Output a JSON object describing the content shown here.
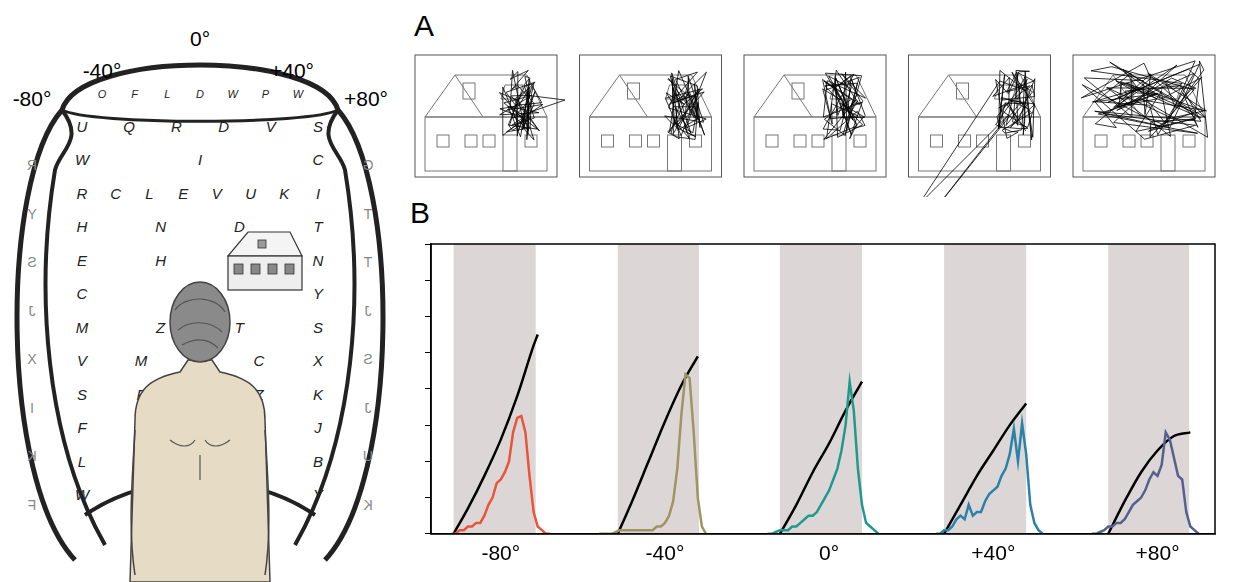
{
  "figure": {
    "angle_labels": [
      "-80°",
      "-40°",
      "0°",
      "+40°",
      "+80°"
    ],
    "dome_letters": [
      "O F L D W P W",
      "U Q R D V S",
      "W I C",
      "R C L E V U K I",
      "H N D T",
      "E H X N",
      "C Y",
      "M Z T S",
      "V M T C X",
      "S F M Z K",
      "F S M D J",
      "L M J G B",
      "W U G V Y"
    ],
    "left_side_letters": "RYSJXIKF",
    "right_side_letters": "GTTJSJUK"
  },
  "panel_a": {
    "label": "A",
    "panels": 5
  },
  "chart_data": {
    "type": "line",
    "panel_label": "B",
    "xlim": [
      -97,
      94
    ],
    "xticks": [
      {
        "value": -80,
        "label": "-80°"
      },
      {
        "value": -40,
        "label": "-40°"
      },
      {
        "value": 0,
        "label": "0°"
      },
      {
        "value": 40,
        "label": "+40°"
      },
      {
        "value": 80,
        "label": "+80°"
      }
    ],
    "ylim": [
      0,
      8
    ],
    "yticks": [
      0,
      1,
      2,
      3,
      4,
      5,
      6,
      7,
      8
    ],
    "tick_labels": "x",
    "grid": false,
    "bands": [
      [
        -91.5,
        -71.5
      ],
      [
        -51.5,
        -31.7
      ],
      [
        -12,
        8
      ],
      [
        28,
        48
      ],
      [
        68,
        87.7
      ]
    ],
    "series": [
      {
        "color": "#e8553a",
        "x": [
          -92,
          -91,
          -90,
          -89,
          -88,
          -87,
          -86,
          -85,
          -84,
          -83,
          -82,
          -81,
          -80,
          -79,
          -78,
          -77,
          -76,
          -75,
          -74,
          -73,
          -72,
          -71,
          -70,
          -69,
          -68
        ],
        "values": [
          0,
          0,
          0.1,
          0.1,
          0.2,
          0.2,
          0.3,
          0.3,
          0.5,
          0.8,
          1.0,
          1.4,
          1.5,
          1.7,
          2.0,
          2.8,
          3.2,
          3.25,
          2.8,
          1.6,
          0.6,
          0.2,
          0.1,
          0,
          0
        ]
      },
      {
        "color": "#a09460",
        "x": [
          -56,
          -55,
          -54,
          -53,
          -52,
          -51,
          -50,
          -49,
          -48,
          -47,
          -46,
          -45,
          -44,
          -43,
          -42,
          -41,
          -40,
          -39,
          -38,
          -37,
          -36,
          -35,
          -34,
          -33,
          -32,
          -31,
          -30
        ],
        "values": [
          0,
          0,
          0,
          0,
          0.05,
          0.1,
          0.1,
          0.1,
          0.1,
          0.1,
          0.1,
          0.1,
          0.1,
          0.1,
          0.2,
          0.2,
          0.3,
          0.5,
          0.9,
          1.8,
          3.3,
          4.4,
          4.3,
          2.8,
          1.0,
          0.2,
          0
        ]
      },
      {
        "color": "#1f9a8a",
        "x": [
          -15,
          -14,
          -13,
          -12,
          -11,
          -10,
          -9,
          -8,
          -7,
          -6,
          -5,
          -4,
          -3,
          -2,
          -1,
          0,
          1,
          2,
          3,
          4,
          5,
          6,
          7,
          8,
          9,
          10,
          11,
          12
        ],
        "values": [
          0,
          0,
          0.05,
          0.1,
          0.1,
          0.1,
          0.2,
          0.2,
          0.3,
          0.4,
          0.5,
          0.5,
          0.6,
          0.8,
          1.0,
          1.2,
          1.5,
          1.8,
          2.3,
          3.0,
          4.2,
          3.4,
          1.8,
          0.8,
          0.3,
          0.2,
          0.1,
          0
        ]
      },
      {
        "color": "#2a82a8",
        "x": [
          26,
          27,
          28,
          29,
          30,
          31,
          32,
          33,
          34,
          35,
          36,
          37,
          38,
          39,
          40,
          41,
          42,
          43,
          44,
          45,
          46,
          47,
          48,
          49,
          50,
          51,
          52
        ],
        "values": [
          0,
          0,
          0.1,
          0.1,
          0.2,
          0.4,
          0.5,
          0.4,
          0.8,
          0.5,
          0.6,
          0.6,
          0.9,
          1.1,
          1.2,
          1.3,
          1.6,
          1.8,
          2.2,
          2.9,
          2.0,
          3.05,
          2.2,
          0.8,
          0.3,
          0.1,
          0
        ]
      },
      {
        "color": "#55608f",
        "x": [
          64,
          65,
          66,
          67,
          68,
          69,
          70,
          71,
          72,
          73,
          74,
          75,
          76,
          77,
          78,
          79,
          80,
          81,
          82,
          83,
          84,
          85,
          86,
          87,
          88,
          89,
          90
        ],
        "values": [
          0,
          0,
          0.05,
          0.1,
          0.2,
          0.2,
          0.3,
          0.3,
          0.4,
          0.6,
          0.8,
          0.9,
          1.0,
          1.2,
          1.5,
          1.7,
          1.6,
          1.9,
          2.8,
          2.6,
          2.1,
          1.6,
          1.5,
          0.6,
          0.2,
          0.1,
          0
        ]
      }
    ],
    "fits": [
      {
        "color": "#000000",
        "x": [
          -91.5,
          -88,
          -84,
          -80,
          -76,
          -72,
          -71
        ],
        "values": [
          0,
          0.7,
          1.6,
          2.6,
          3.8,
          5.2,
          5.5
        ]
      },
      {
        "color": "#000000",
        "x": [
          -51.5,
          -48,
          -44,
          -40,
          -36,
          -32
        ],
        "values": [
          0,
          0.9,
          2.0,
          3.1,
          4.1,
          4.9
        ]
      },
      {
        "color": "#000000",
        "x": [
          -12,
          -8,
          -4,
          0,
          4,
          8
        ],
        "values": [
          0,
          0.8,
          1.7,
          2.5,
          3.4,
          4.2
        ]
      },
      {
        "color": "#000000",
        "x": [
          28,
          32,
          36,
          40,
          44,
          48
        ],
        "values": [
          0,
          0.8,
          1.6,
          2.3,
          3.0,
          3.6
        ]
      },
      {
        "color": "#000000",
        "x": [
          68,
          72,
          76,
          80,
          84,
          88
        ],
        "values": [
          0,
          0.9,
          1.7,
          2.3,
          2.7,
          2.8
        ]
      }
    ]
  }
}
